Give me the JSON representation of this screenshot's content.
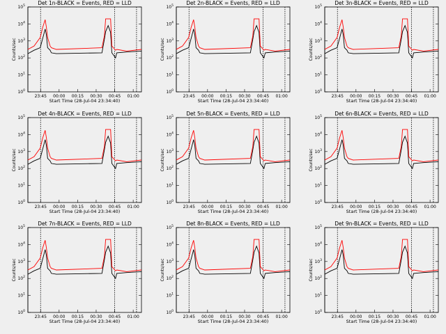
{
  "start_time_label": "Start Time (28-Jul-04 23:34:40)",
  "ylabel": "Counts/sec",
  "x_ticks": [
    "23:45",
    "00:00",
    "00:15",
    "00:30",
    "00:45",
    "01:00"
  ],
  "y_ticks": [
    {
      "base": "10",
      "exp": "5"
    },
    {
      "base": "10",
      "exp": "4"
    },
    {
      "base": "10",
      "exp": "3"
    },
    {
      "base": "10",
      "exp": "2"
    },
    {
      "base": "10",
      "exp": "1"
    },
    {
      "base": "10",
      "exp": "0"
    }
  ],
  "colors": {
    "events": "#000000",
    "lld": "#ff0000",
    "background": "#efefef"
  },
  "chart_data": [
    {
      "type": "line",
      "title": "Det 1n-BLACK = Events, RED = LLD",
      "xlabel": "Start Time (28-Jul-04 23:34:40)",
      "ylabel": "Counts/sec",
      "xlim_min": [
        0,
        92
      ],
      "ylim_log10": [
        0,
        5
      ],
      "series": [
        {
          "name": "Events",
          "x": [
            0,
            5,
            10,
            12,
            14,
            15,
            16,
            18,
            19,
            23,
            60,
            62,
            63,
            65,
            67,
            68,
            71,
            72,
            80,
            92
          ],
          "log10": [
            2.25,
            2.45,
            2.6,
            3.15,
            3.7,
            3.35,
            2.6,
            2.45,
            2.3,
            2.25,
            2.3,
            3.1,
            3.55,
            3.9,
            3.5,
            2.3,
            2.0,
            2.3,
            2.35,
            2.4
          ]
        },
        {
          "name": "LLD",
          "x": [
            0,
            5,
            10,
            12,
            14,
            15,
            16,
            18,
            19,
            23,
            60,
            62,
            63,
            65,
            67,
            68,
            71,
            72,
            80,
            92
          ],
          "log10": [
            2.5,
            2.7,
            3.2,
            3.8,
            4.25,
            3.8,
            3.2,
            2.7,
            2.6,
            2.5,
            2.6,
            3.3,
            4.3,
            4.3,
            4.3,
            2.7,
            2.45,
            2.5,
            2.4,
            2.5
          ]
        }
      ],
      "vlines_min": [
        0,
        10.3,
        70.3,
        88
      ]
    },
    {
      "type": "line",
      "title": "Det 2n-BLACK = Events, RED = LLD",
      "xlabel": "Start Time (28-Jul-04 23:34:40)",
      "ylabel": "Counts/sec",
      "xlim_min": [
        0,
        92
      ],
      "ylim_log10": [
        0,
        5
      ],
      "series": [
        {
          "name": "Events",
          "x": [
            0,
            5,
            10,
            12,
            14,
            15,
            16,
            18,
            19,
            23,
            60,
            62,
            63,
            65,
            67,
            68,
            71,
            72,
            80,
            92
          ],
          "log10": [
            2.25,
            2.45,
            2.6,
            3.15,
            3.7,
            3.35,
            2.6,
            2.45,
            2.3,
            2.25,
            2.3,
            3.1,
            3.55,
            3.9,
            3.5,
            2.3,
            2.0,
            2.3,
            2.35,
            2.4
          ]
        },
        {
          "name": "LLD",
          "x": [
            0,
            5,
            10,
            12,
            14,
            15,
            16,
            18,
            19,
            23,
            60,
            62,
            63,
            65,
            67,
            68,
            71,
            72,
            80,
            92
          ],
          "log10": [
            2.5,
            2.7,
            3.2,
            3.8,
            4.25,
            3.8,
            3.2,
            2.7,
            2.6,
            2.5,
            2.6,
            3.3,
            4.3,
            4.3,
            4.3,
            2.7,
            2.45,
            2.5,
            2.4,
            2.5
          ]
        }
      ],
      "vlines_min": [
        0,
        10.3,
        70.3,
        88
      ]
    },
    {
      "type": "line",
      "title": "Det 3n-BLACK = Events, RED = LLD",
      "xlabel": "Start Time (28-Jul-04 23:34:40)",
      "ylabel": "Counts/sec",
      "xlim_min": [
        0,
        92
      ],
      "ylim_log10": [
        0,
        5
      ],
      "series": [
        {
          "name": "Events",
          "x": [
            0,
            5,
            10,
            12,
            14,
            15,
            16,
            18,
            19,
            23,
            60,
            62,
            63,
            65,
            67,
            68,
            71,
            72,
            80,
            92
          ],
          "log10": [
            2.25,
            2.45,
            2.6,
            3.15,
            3.7,
            3.35,
            2.6,
            2.45,
            2.3,
            2.25,
            2.3,
            3.1,
            3.55,
            3.9,
            3.5,
            2.3,
            2.0,
            2.3,
            2.35,
            2.4
          ]
        },
        {
          "name": "LLD",
          "x": [
            0,
            5,
            10,
            12,
            14,
            15,
            16,
            18,
            19,
            23,
            60,
            62,
            63,
            65,
            67,
            68,
            71,
            72,
            80,
            92
          ],
          "log10": [
            2.5,
            2.7,
            3.2,
            3.8,
            4.25,
            3.8,
            3.2,
            2.7,
            2.6,
            2.5,
            2.6,
            3.3,
            4.3,
            4.3,
            4.3,
            2.7,
            2.45,
            2.5,
            2.4,
            2.5
          ]
        }
      ],
      "vlines_min": [
        0,
        10.3,
        70.3,
        88
      ]
    },
    {
      "type": "line",
      "title": "Det 4n-BLACK = Events, RED = LLD",
      "xlabel": "Start Time (28-Jul-04 23:34:40)",
      "ylabel": "Counts/sec",
      "xlim_min": [
        0,
        92
      ],
      "ylim_log10": [
        0,
        5
      ],
      "series": [
        {
          "name": "Events",
          "x": [
            0,
            5,
            10,
            12,
            14,
            15,
            16,
            18,
            19,
            23,
            60,
            62,
            63,
            65,
            67,
            68,
            71,
            72,
            80,
            92
          ],
          "log10": [
            2.25,
            2.45,
            2.6,
            3.15,
            3.7,
            3.35,
            2.6,
            2.45,
            2.3,
            2.25,
            2.3,
            3.1,
            3.55,
            3.9,
            3.5,
            2.3,
            2.0,
            2.3,
            2.35,
            2.4
          ]
        },
        {
          "name": "LLD",
          "x": [
            0,
            5,
            10,
            12,
            14,
            15,
            16,
            18,
            19,
            23,
            60,
            62,
            63,
            65,
            67,
            68,
            71,
            72,
            80,
            92
          ],
          "log10": [
            2.5,
            2.7,
            3.2,
            3.8,
            4.25,
            3.8,
            3.2,
            2.7,
            2.6,
            2.5,
            2.6,
            3.3,
            4.3,
            4.3,
            4.3,
            2.7,
            2.45,
            2.5,
            2.4,
            2.5
          ]
        }
      ],
      "vlines_min": [
        0,
        10.3,
        70.3,
        88
      ]
    },
    {
      "type": "line",
      "title": "Det 5n-BLACK = Events, RED = LLD",
      "xlabel": "Start Time (28-Jul-04 23:34:40)",
      "ylabel": "Counts/sec",
      "xlim_min": [
        0,
        92
      ],
      "ylim_log10": [
        0,
        5
      ],
      "series": [
        {
          "name": "Events",
          "x": [
            0,
            5,
            10,
            12,
            14,
            15,
            16,
            18,
            19,
            23,
            60,
            62,
            63,
            65,
            67,
            68,
            71,
            72,
            80,
            92
          ],
          "log10": [
            2.25,
            2.45,
            2.6,
            3.15,
            3.7,
            3.35,
            2.6,
            2.45,
            2.3,
            2.25,
            2.3,
            3.1,
            3.55,
            3.9,
            3.5,
            2.3,
            2.0,
            2.3,
            2.35,
            2.4
          ]
        },
        {
          "name": "LLD",
          "x": [
            0,
            5,
            10,
            12,
            14,
            15,
            16,
            18,
            19,
            23,
            60,
            62,
            63,
            65,
            67,
            68,
            71,
            72,
            80,
            92
          ],
          "log10": [
            2.5,
            2.7,
            3.2,
            3.8,
            4.25,
            3.8,
            3.2,
            2.7,
            2.6,
            2.5,
            2.6,
            3.3,
            4.3,
            4.3,
            4.3,
            2.7,
            2.45,
            2.5,
            2.4,
            2.5
          ]
        }
      ],
      "vlines_min": [
        0,
        10.3,
        70.3,
        88
      ]
    },
    {
      "type": "line",
      "title": "Det 6n-BLACK = Events, RED = LLD",
      "xlabel": "Start Time (28-Jul-04 23:34:40)",
      "ylabel": "Counts/sec",
      "xlim_min": [
        0,
        92
      ],
      "ylim_log10": [
        0,
        5
      ],
      "series": [
        {
          "name": "Events",
          "x": [
            0,
            5,
            10,
            12,
            14,
            15,
            16,
            18,
            19,
            23,
            60,
            62,
            63,
            65,
            67,
            68,
            71,
            72,
            80,
            92
          ],
          "log10": [
            2.25,
            2.45,
            2.6,
            3.15,
            3.7,
            3.35,
            2.6,
            2.45,
            2.3,
            2.25,
            2.3,
            3.1,
            3.55,
            3.9,
            3.5,
            2.3,
            2.0,
            2.3,
            2.35,
            2.4
          ]
        },
        {
          "name": "LLD",
          "x": [
            0,
            5,
            10,
            12,
            14,
            15,
            16,
            18,
            19,
            23,
            60,
            62,
            63,
            65,
            67,
            68,
            71,
            72,
            80,
            92
          ],
          "log10": [
            2.5,
            2.7,
            3.2,
            3.8,
            4.25,
            3.8,
            3.2,
            2.7,
            2.6,
            2.5,
            2.6,
            3.3,
            4.3,
            4.3,
            4.3,
            2.7,
            2.45,
            2.5,
            2.4,
            2.5
          ]
        }
      ],
      "vlines_min": [
        0,
        10.3,
        70.3,
        88
      ]
    },
    {
      "type": "line",
      "title": "Det 7n-BLACK = Events, RED = LLD",
      "xlabel": "Start Time (28-Jul-04 23:34:40)",
      "ylabel": "Counts/sec",
      "xlim_min": [
        0,
        92
      ],
      "ylim_log10": [
        0,
        5
      ],
      "series": [
        {
          "name": "Events",
          "x": [
            0,
            5,
            10,
            12,
            14,
            15,
            16,
            18,
            19,
            23,
            60,
            62,
            63,
            65,
            67,
            68,
            71,
            72,
            80,
            92
          ],
          "log10": [
            2.25,
            2.45,
            2.6,
            3.15,
            3.7,
            3.35,
            2.6,
            2.45,
            2.3,
            2.25,
            2.3,
            3.1,
            3.55,
            3.9,
            3.5,
            2.3,
            2.0,
            2.3,
            2.35,
            2.4
          ]
        },
        {
          "name": "LLD",
          "x": [
            0,
            5,
            10,
            12,
            14,
            15,
            16,
            18,
            19,
            23,
            60,
            62,
            63,
            65,
            67,
            68,
            71,
            72,
            80,
            92
          ],
          "log10": [
            2.5,
            2.7,
            3.2,
            3.8,
            4.25,
            3.8,
            3.2,
            2.7,
            2.6,
            2.5,
            2.6,
            3.3,
            4.3,
            4.3,
            4.3,
            2.7,
            2.45,
            2.5,
            2.4,
            2.5
          ]
        }
      ],
      "vlines_min": [
        0,
        10.3,
        70.3,
        88
      ]
    },
    {
      "type": "line",
      "title": "Det 8n-BLACK = Events, RED = LLD",
      "xlabel": "Start Time (28-Jul-04 23:34:40)",
      "ylabel": "Counts/sec",
      "xlim_min": [
        0,
        92
      ],
      "ylim_log10": [
        0,
        5
      ],
      "series": [
        {
          "name": "Events",
          "x": [
            0,
            5,
            10,
            12,
            14,
            15,
            16,
            18,
            19,
            23,
            60,
            62,
            63,
            65,
            67,
            68,
            71,
            72,
            80,
            92
          ],
          "log10": [
            2.25,
            2.45,
            2.6,
            3.15,
            3.7,
            3.35,
            2.6,
            2.45,
            2.3,
            2.25,
            2.3,
            3.1,
            3.55,
            3.9,
            3.5,
            2.3,
            2.0,
            2.3,
            2.35,
            2.4
          ]
        },
        {
          "name": "LLD",
          "x": [
            0,
            5,
            10,
            12,
            14,
            15,
            16,
            18,
            19,
            23,
            60,
            62,
            63,
            65,
            67,
            68,
            71,
            72,
            80,
            92
          ],
          "log10": [
            2.5,
            2.7,
            3.2,
            3.8,
            4.25,
            3.8,
            3.2,
            2.7,
            2.6,
            2.5,
            2.6,
            3.3,
            4.3,
            4.3,
            4.3,
            2.7,
            2.45,
            2.5,
            2.4,
            2.5
          ]
        }
      ],
      "vlines_min": [
        0,
        10.3,
        70.3,
        88
      ]
    },
    {
      "type": "line",
      "title": "Det 9n-BLACK = Events, RED = LLD",
      "xlabel": "Start Time (28-Jul-04 23:34:40)",
      "ylabel": "Counts/sec",
      "xlim_min": [
        0,
        92
      ],
      "ylim_log10": [
        0,
        5
      ],
      "series": [
        {
          "name": "Events",
          "x": [
            0,
            5,
            10,
            12,
            14,
            15,
            16,
            18,
            19,
            23,
            60,
            62,
            63,
            65,
            67,
            68,
            71,
            72,
            80,
            92
          ],
          "log10": [
            2.25,
            2.45,
            2.6,
            3.15,
            3.7,
            3.35,
            2.6,
            2.45,
            2.3,
            2.25,
            2.3,
            3.1,
            3.55,
            3.9,
            3.5,
            2.3,
            2.0,
            2.3,
            2.35,
            2.4
          ]
        },
        {
          "name": "LLD",
          "x": [
            0,
            5,
            10,
            12,
            14,
            15,
            16,
            18,
            19,
            23,
            60,
            62,
            63,
            65,
            67,
            68,
            71,
            72,
            80,
            92
          ],
          "log10": [
            2.5,
            2.7,
            3.2,
            3.8,
            4.25,
            3.8,
            3.2,
            2.7,
            2.6,
            2.5,
            2.6,
            3.3,
            4.3,
            4.3,
            4.3,
            2.7,
            2.45,
            2.5,
            2.4,
            2.5
          ]
        }
      ],
      "vlines_min": [
        0,
        10.3,
        70.3,
        88
      ]
    }
  ]
}
